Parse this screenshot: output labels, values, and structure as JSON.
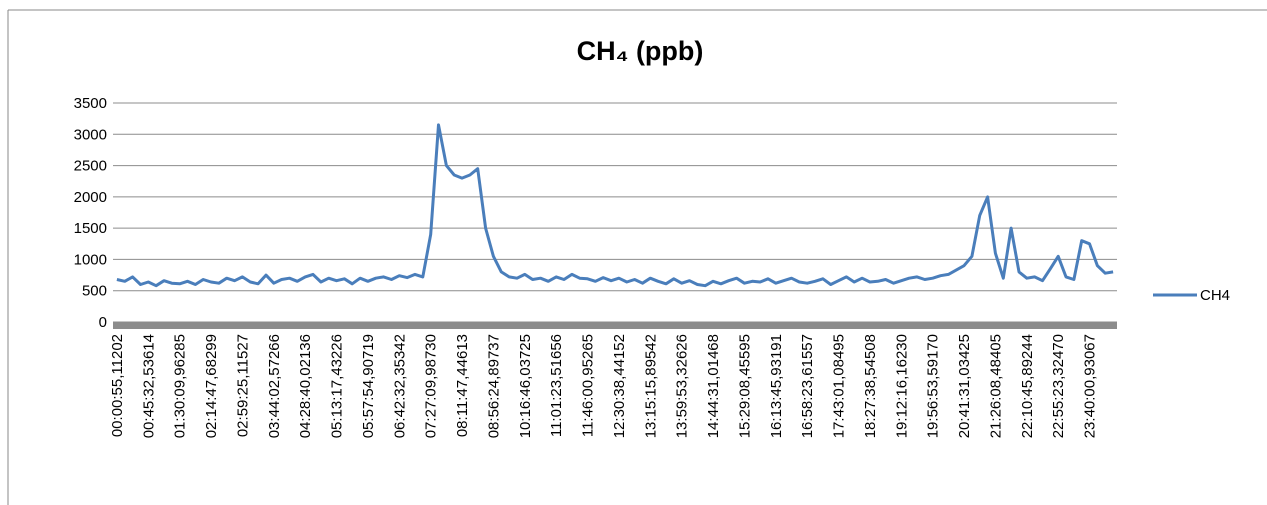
{
  "chart_data": {
    "type": "line",
    "title": "CH₄ (ppb)",
    "categories": [
      "00:00:55,11202",
      null,
      null,
      null,
      "00:45:32,53614",
      null,
      null,
      null,
      "01:30:09,96285",
      null,
      null,
      null,
      "02:14:47,68299",
      null,
      null,
      null,
      "02:59:25,11527",
      null,
      null,
      null,
      "03:44:02,57266",
      null,
      null,
      null,
      "04:28:40,02136",
      null,
      null,
      null,
      "05:13:17,43226",
      null,
      null,
      null,
      "05:57:54,90719",
      null,
      null,
      null,
      "06:42:32,35342",
      null,
      null,
      null,
      "07:27:09,98730",
      null,
      null,
      null,
      "08:11:47,44613",
      null,
      null,
      null,
      "08:56:24,89737",
      null,
      null,
      null,
      "10:16:46,03725",
      null,
      null,
      null,
      "11:01:23,51656",
      null,
      null,
      null,
      "11:46:00,95265",
      null,
      null,
      null,
      "12:30:38,44152",
      null,
      null,
      null,
      "13:15:15,89542",
      null,
      null,
      null,
      "13:59:53,32626",
      null,
      null,
      null,
      "14:44:31,01468",
      null,
      null,
      null,
      "15:29:08,45595",
      null,
      null,
      null,
      "16:13:45,93191",
      null,
      null,
      null,
      "16:58:23,61557",
      null,
      null,
      null,
      "17:43:01,08495",
      null,
      null,
      null,
      "18:27:38,54508",
      null,
      null,
      null,
      "19:12:16,16230",
      null,
      null,
      null,
      "19:56:53,59170",
      null,
      null,
      null,
      "20:41:31,03425",
      null,
      null,
      null,
      "21:26:08,48405",
      null,
      null,
      null,
      "22:10:45,89244",
      null,
      null,
      null,
      "22:55:23,32470",
      null,
      null,
      null,
      "23:40:00,93067",
      null,
      null,
      null
    ],
    "series": [
      {
        "name": "CH4",
        "color": "#4a7ebb",
        "values": [
          680,
          650,
          720,
          600,
          640,
          580,
          660,
          620,
          610,
          650,
          600,
          680,
          640,
          620,
          700,
          660,
          720,
          640,
          610,
          750,
          620,
          680,
          700,
          650,
          720,
          760,
          640,
          700,
          660,
          690,
          610,
          700,
          650,
          700,
          720,
          680,
          740,
          710,
          760,
          720,
          1400,
          3150,
          2500,
          2350,
          2300,
          2350,
          2450,
          1500,
          1050,
          800,
          720,
          700,
          760,
          680,
          700,
          650,
          720,
          680,
          760,
          700,
          690,
          650,
          710,
          660,
          700,
          640,
          680,
          620,
          700,
          650,
          610,
          690,
          620,
          660,
          600,
          580,
          650,
          610,
          660,
          700,
          620,
          650,
          640,
          690,
          620,
          660,
          700,
          640,
          620,
          650,
          690,
          600,
          660,
          720,
          640,
          700,
          640,
          650,
          680,
          620,
          660,
          700,
          720,
          680,
          700,
          740,
          760,
          830,
          900,
          1050,
          1700,
          2000,
          1100,
          700,
          1500,
          800,
          700,
          720,
          660,
          850,
          1050,
          720,
          680,
          1300,
          1250,
          900,
          780,
          800
        ]
      }
    ],
    "ylim": [
      0,
      3500
    ],
    "yticks": [
      0,
      500,
      1000,
      1500,
      2000,
      2500,
      3000,
      3500
    ],
    "grid": true,
    "legend": "right"
  }
}
